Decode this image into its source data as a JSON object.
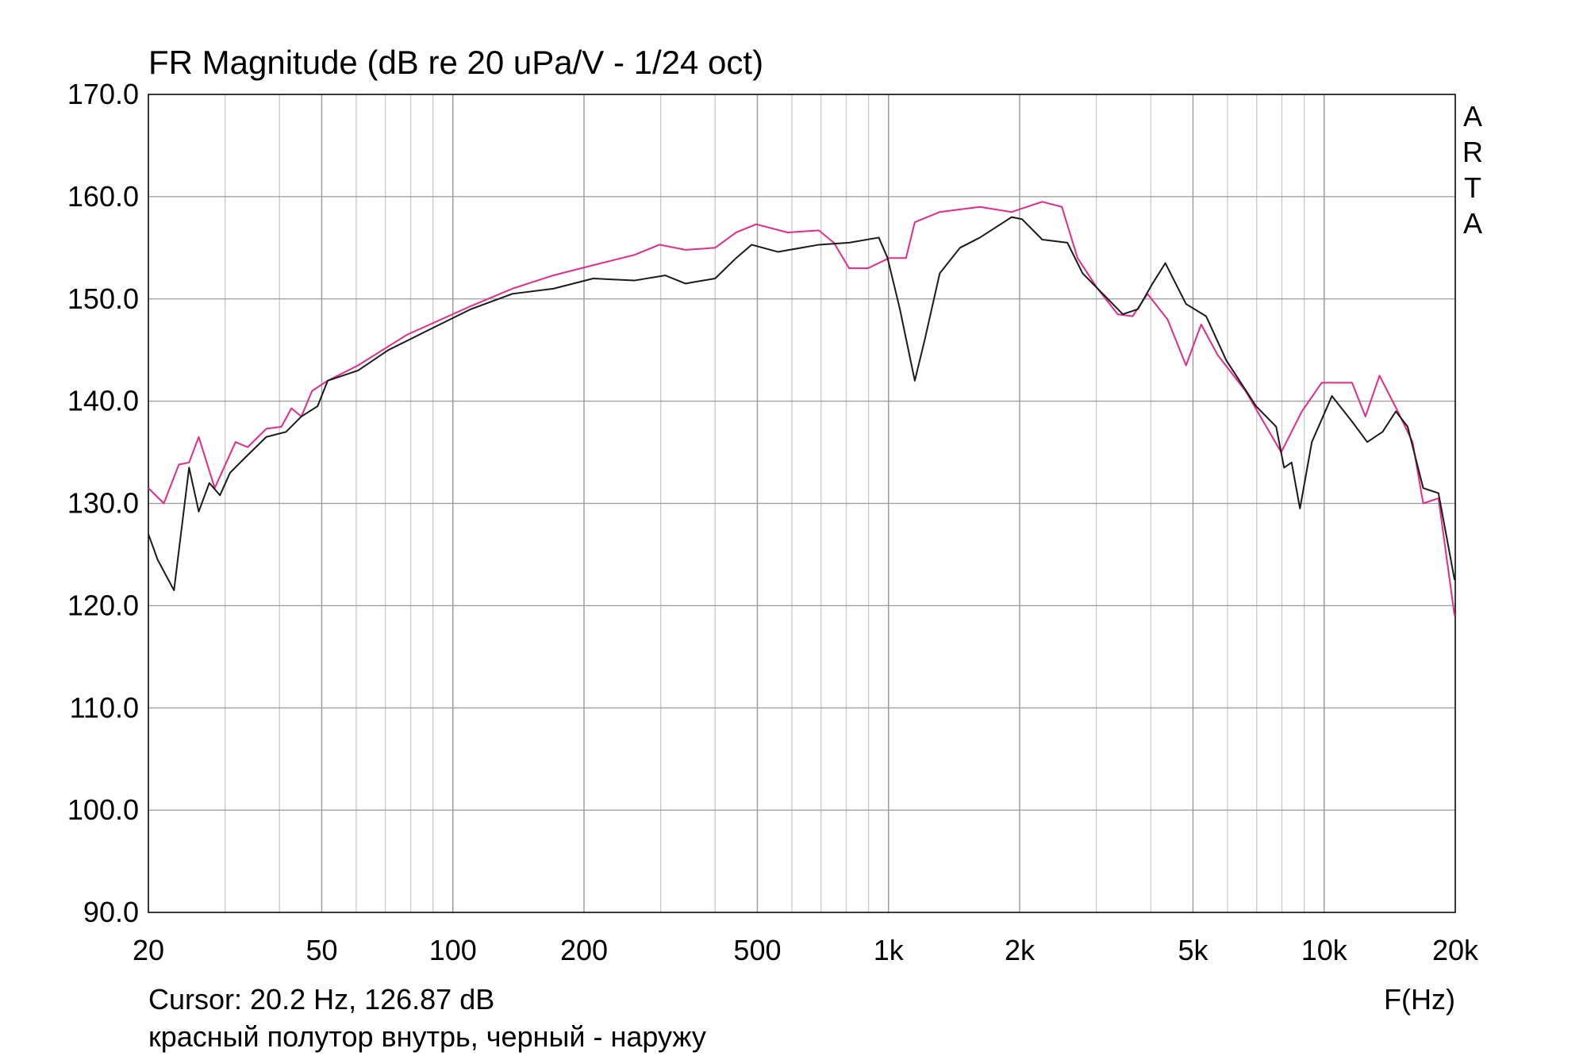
{
  "chart_data": {
    "type": "line",
    "title": "FR Magnitude (dB re 20 uPa/V - 1/24 oct)",
    "watermark": "ARTA",
    "cursor": "Cursor: 20.2 Hz, 126.87 dB",
    "x_label": "F(Hz)",
    "caption": "красный полутор внутрь, черный - наружу",
    "log_x": true,
    "grid": true,
    "xlim": [
      20,
      20000
    ],
    "xticks": [
      20,
      50,
      100,
      200,
      500,
      {
        "value": 1000,
        "label": "1k"
      },
      {
        "value": 2000,
        "label": "2k"
      },
      {
        "value": 5000,
        "label": "5k"
      },
      {
        "value": 10000,
        "label": "10k"
      },
      {
        "value": 20000,
        "label": "20k"
      }
    ],
    "ylim": [
      90,
      170
    ],
    "yticks": [
      {
        "value": 90,
        "label": "90.0"
      },
      {
        "value": 100,
        "label": "100.0"
      },
      {
        "value": 110,
        "label": "110.0"
      },
      {
        "value": 120,
        "label": "120.0"
      },
      {
        "value": 130,
        "label": "130.0"
      },
      {
        "value": 140,
        "label": "140.0"
      },
      {
        "value": 150,
        "label": "150.0"
      },
      {
        "value": 160,
        "label": "160.0"
      },
      {
        "value": 170,
        "label": "170.0"
      }
    ],
    "series": [
      {
        "color": "#e8288a",
        "x": [
          20,
          21.7,
          23.5,
          24.8,
          26.1,
          28.4,
          31.7,
          33.8,
          37.3,
          40.4,
          42.6,
          44.9,
          47.5,
          51.6,
          60.6,
          78.5,
          110,
          137,
          170,
          210,
          261,
          298,
          342,
          400,
          447,
          497,
          587,
          692,
          749,
          812,
          897,
          1004,
          1097,
          1149,
          1311,
          1621,
          1917,
          2254,
          2500,
          2716,
          3020,
          3359,
          3633,
          3930,
          4370,
          4820,
          5220,
          5700,
          6600,
          7970,
          8890,
          9870,
          11590,
          12440,
          13400,
          14760,
          15960,
          16880,
          18300,
          19930
        ],
        "values": [
          131.5,
          130,
          133.8,
          134,
          136.5,
          131.5,
          136,
          135.5,
          137.3,
          137.5,
          139.3,
          138.5,
          141,
          142,
          143.5,
          146.5,
          149.3,
          151,
          152.3,
          153.3,
          154.3,
          155.3,
          154.8,
          155,
          156.5,
          157.3,
          156.5,
          156.7,
          155.5,
          153,
          153,
          154,
          154,
          157.5,
          158.5,
          159,
          158.5,
          159.5,
          159,
          154,
          151,
          148.5,
          148.3,
          150.5,
          148,
          143.5,
          147.5,
          144.5,
          141,
          135,
          139,
          141.8,
          141.8,
          138.5,
          142.5,
          139,
          136,
          130,
          130.5,
          119
        ]
      },
      {
        "color": "#1a1a1a",
        "x": [
          20,
          21,
          22.9,
          24.8,
          26.1,
          27.6,
          29.2,
          30.8,
          33.4,
          37.3,
          41.4,
          44.9,
          48.9,
          51.6,
          60.6,
          71.1,
          88.4,
          110,
          137,
          170,
          210,
          261,
          307,
          342,
          400,
          447,
          485,
          557,
          692,
          812,
          950,
          995,
          1062,
          1149,
          1211,
          1311,
          1459,
          1621,
          1917,
          2025,
          2254,
          2574,
          2790,
          3104,
          3450,
          3737,
          4037,
          4320,
          4820,
          5360,
          5960,
          6980,
          7760,
          8092,
          8420,
          8800,
          9370,
          10420,
          11590,
          12560,
          13620,
          14610,
          15550,
          16880,
          18300,
          19930
        ],
        "values": [
          127,
          124.5,
          121.5,
          133.5,
          129.2,
          132,
          130.8,
          133,
          134.5,
          136.5,
          137,
          138.5,
          139.5,
          142,
          143,
          145,
          147,
          149,
          150.5,
          151,
          152,
          151.8,
          152.3,
          151.5,
          152,
          154,
          155.3,
          154.6,
          155.3,
          155.5,
          156,
          154,
          149,
          142,
          146,
          152.5,
          155,
          156,
          158,
          157.8,
          155.8,
          155.5,
          152.5,
          150.5,
          148.5,
          149,
          151.5,
          153.5,
          149.5,
          148.3,
          144,
          139.5,
          137.5,
          133.5,
          134,
          129.5,
          136,
          140.5,
          138,
          136,
          137,
          139,
          137.5,
          131.5,
          131,
          122.5
        ]
      }
    ]
  }
}
